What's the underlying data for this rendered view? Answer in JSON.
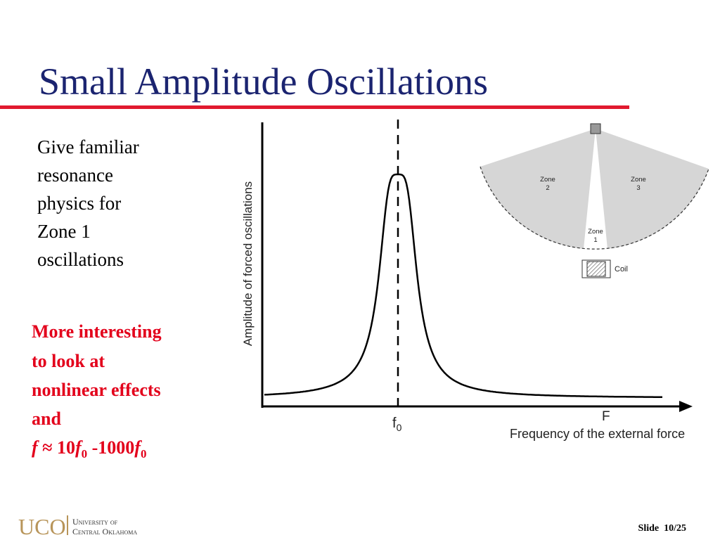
{
  "title": "Small Amplitude Oscillations",
  "body_lines": [
    "Give familiar",
    "resonance",
    "physics for",
    "Zone 1",
    "oscillations"
  ],
  "highlight_lines": [
    "More interesting",
    "to look at",
    "nonlinear effects",
    "and"
  ],
  "formula": {
    "f1": "f",
    "approx": " ≈ 10",
    "f2": "f",
    "sub2": "0",
    "dash": " -1000",
    "f3": "f",
    "sub3": "0"
  },
  "plot": {
    "y_label": "Amplitude of forced oscillations",
    "peak_label": {
      "main": "f",
      "sub": "0"
    },
    "x_end_label": "F",
    "x_label": "Frequency of the external force"
  },
  "zones": {
    "zone2": [
      "Zone",
      "2"
    ],
    "zone3": [
      "Zone",
      "3"
    ],
    "zone1": [
      "Zone",
      "1"
    ],
    "coil": "Coil"
  },
  "footer": {
    "logo": "UCO",
    "university": [
      "University of",
      "Central Oklahoma"
    ],
    "slide": "Slide  10/25"
  }
}
